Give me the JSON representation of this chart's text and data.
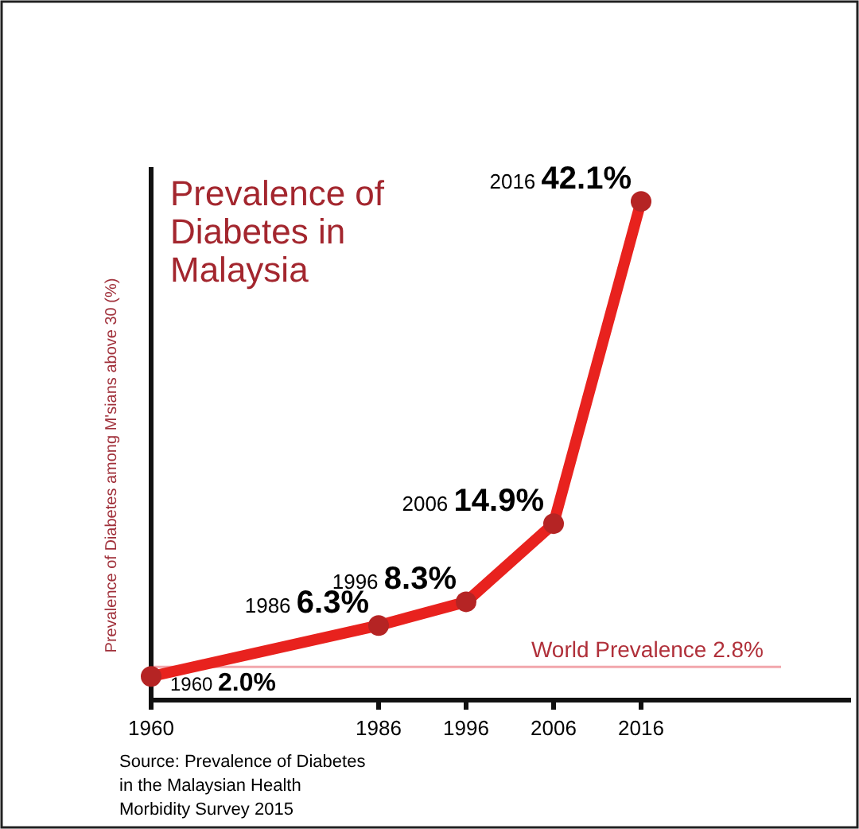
{
  "chart_data": {
    "type": "line",
    "title": "Prevalence of Diabetes in Malaysia",
    "ylabel": "Prevalence of Diabetes among M'sians above 30 (%)",
    "x": [
      1960,
      1986,
      1996,
      2006,
      2016
    ],
    "series": [
      {
        "color": "#e8221e",
        "values": [
          2.0,
          6.3,
          8.3,
          14.9,
          42.1
        ],
        "value_labels": [
          "1960 2.0%",
          "1986 6.3%",
          "1996 8.3%",
          "2006 14.9%",
          "2016 42.1%"
        ]
      }
    ],
    "xlim": [
      1960,
      2040
    ],
    "xticks": [
      1960,
      1986,
      1996,
      2006,
      2016
    ],
    "ylim": [
      0,
      45
    ],
    "tick_labels": "x",
    "marker": "circle",
    "grid": false,
    "ref_lines": [
      {
        "axis": "y",
        "value": 2.8,
        "label": "World Prevalence 2.8%",
        "color": "#f2a7ad"
      }
    ],
    "annotations": [
      "Source: Prevalence of Diabetes in the Malaysian Health Morbidity Survey 2015"
    ]
  }
}
